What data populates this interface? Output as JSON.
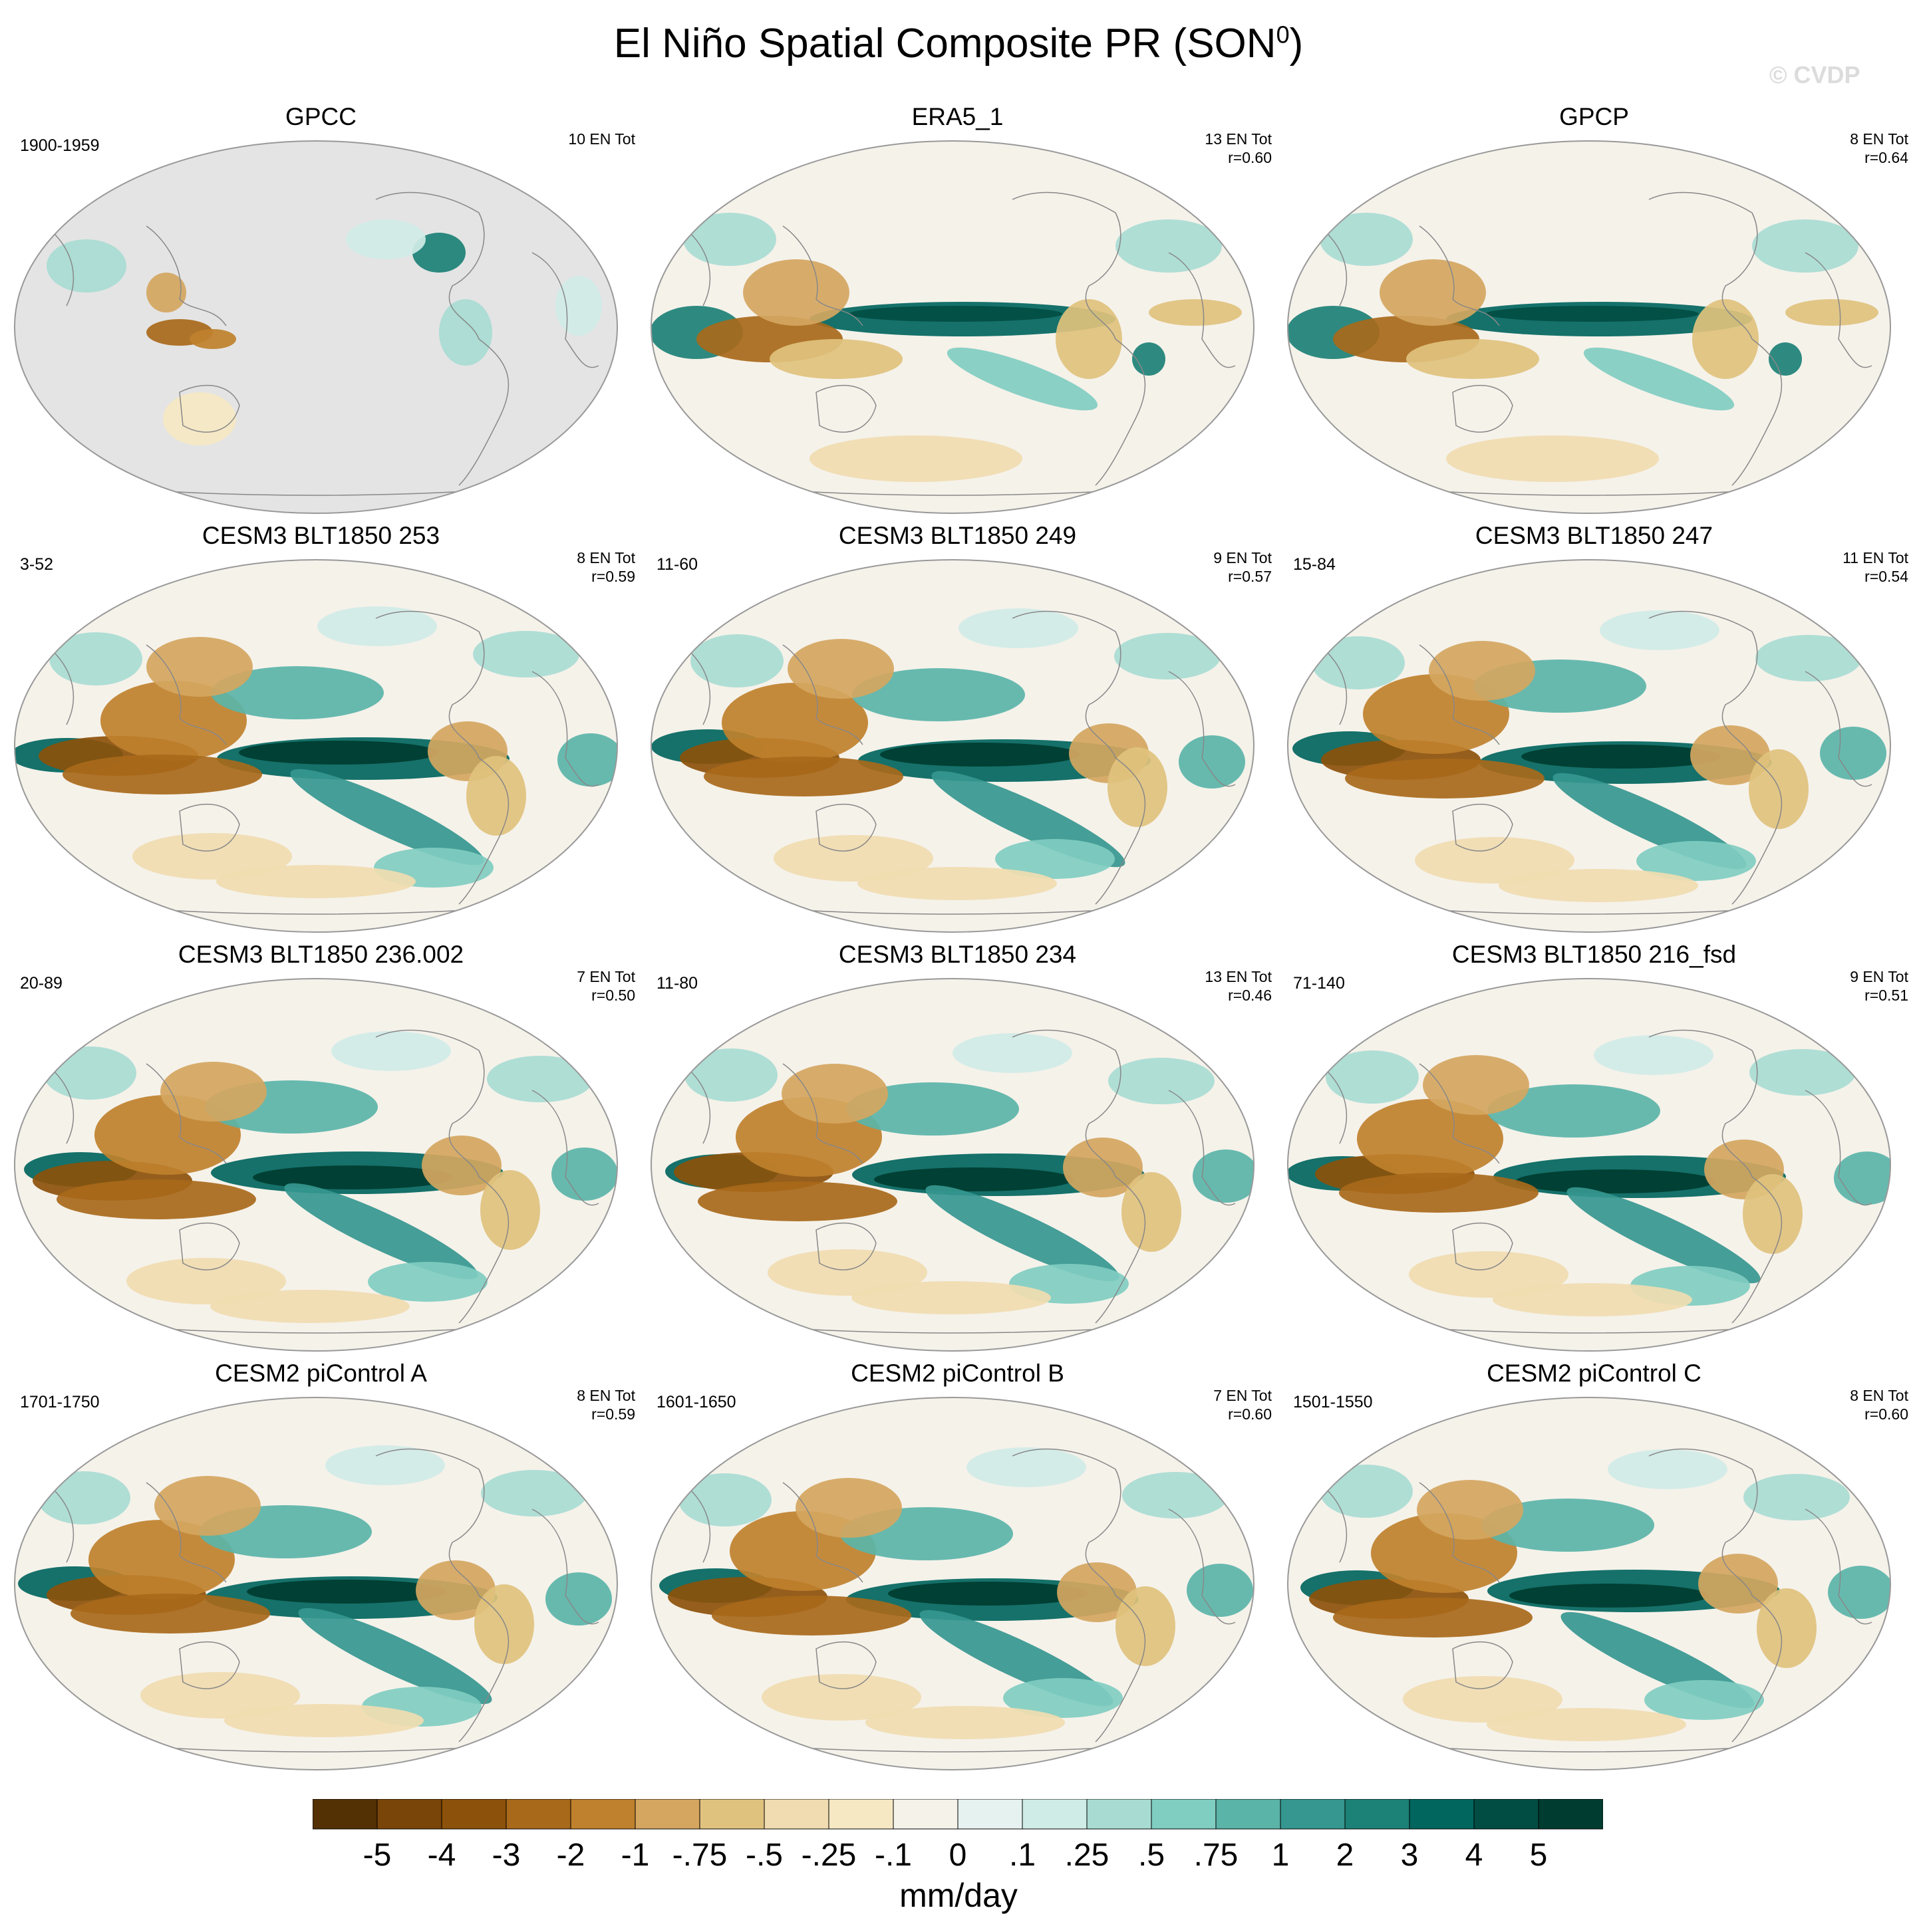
{
  "title": "El Niño Spatial Composite PR (SON",
  "title_sup": "0",
  "title_end": ")",
  "watermark": "© CVDP",
  "panels": [
    {
      "title": "GPCC",
      "years": "1900-1959",
      "en": "10 EN Tot",
      "r": "",
      "style": "gpcc"
    },
    {
      "title": "ERA5_1",
      "years": "",
      "en": "13 EN Tot",
      "r": "r=0.60",
      "style": "obs"
    },
    {
      "title": "GPCP",
      "years": "",
      "en": "8 EN Tot",
      "r": "r=0.64",
      "style": "obs"
    },
    {
      "title": "CESM3 BLT1850 253",
      "years": "3-52",
      "en": "8 EN Tot",
      "r": "r=0.59",
      "style": "model"
    },
    {
      "title": "CESM3 BLT1850 249",
      "years": "11-60",
      "en": "9 EN Tot",
      "r": "r=0.57",
      "style": "model"
    },
    {
      "title": "CESM3 BLT1850 247",
      "years": "15-84",
      "en": "11 EN Tot",
      "r": "r=0.54",
      "style": "model"
    },
    {
      "title": "CESM3 BLT1850 236.002",
      "years": "20-89",
      "en": "7 EN Tot",
      "r": "r=0.50",
      "style": "model"
    },
    {
      "title": "CESM3 BLT1850 234",
      "years": "11-80",
      "en": "13 EN Tot",
      "r": "r=0.46",
      "style": "model"
    },
    {
      "title": "CESM3 BLT1850 216_fsd",
      "years": "71-140",
      "en": "9 EN Tot",
      "r": "r=0.51",
      "style": "model"
    },
    {
      "title": "CESM2 piControl A",
      "years": "1701-1750",
      "en": "8 EN Tot",
      "r": "r=0.59",
      "style": "model"
    },
    {
      "title": "CESM2 piControl B",
      "years": "1601-1650",
      "en": "7 EN Tot",
      "r": "r=0.60",
      "style": "model"
    },
    {
      "title": "CESM2 piControl C",
      "years": "1501-1550",
      "en": "8 EN Tot",
      "r": "r=0.60",
      "style": "model"
    }
  ],
  "colorbar": {
    "labels": [
      "-5",
      "-4",
      "-3",
      "-2",
      "-1",
      "-.75",
      "-.5",
      "-.25",
      "-.1",
      "0",
      ".1",
      ".25",
      ".5",
      ".75",
      "1",
      "2",
      "3",
      "4",
      "5"
    ],
    "colors": [
      "#543005",
      "#7a4509",
      "#8c510a",
      "#a8691a",
      "#bf812d",
      "#d4a660",
      "#dfc27d",
      "#f0dcb0",
      "#f6e8c3",
      "#f5f2ea",
      "#e6f2ef",
      "#d0ece7",
      "#a8dcd3",
      "#80cdc1",
      "#5ab4a8",
      "#35978f",
      "#1c8176",
      "#01665e",
      "#024d43",
      "#003c30"
    ],
    "unit": "mm/day"
  },
  "chart_data": {
    "type": "heatmap",
    "title": "El Niño Spatial Composite PR (SON0)",
    "units": "mm/day",
    "levels": [
      -5,
      -4,
      -3,
      -2,
      -1,
      -0.75,
      -0.5,
      -0.25,
      -0.1,
      0,
      0.1,
      0.25,
      0.5,
      0.75,
      1,
      2,
      3,
      4,
      5
    ],
    "panels": [
      "GPCC",
      "ERA5_1",
      "GPCP",
      "CESM3 BLT1850 253",
      "CESM3 BLT1850 249",
      "CESM3 BLT1850 247",
      "CESM3 BLT1850 236.002",
      "CESM3 BLT1850 234",
      "CESM3 BLT1850 216_fsd",
      "CESM2 piControl A",
      "CESM2 piControl B",
      "CESM2 piControl C"
    ],
    "pattern_correlation": [
      "",
      "0.60",
      "0.64",
      "0.59",
      "0.57",
      "0.54",
      "0.50",
      "0.46",
      "0.51",
      "0.59",
      "0.60",
      "0.60"
    ]
  }
}
